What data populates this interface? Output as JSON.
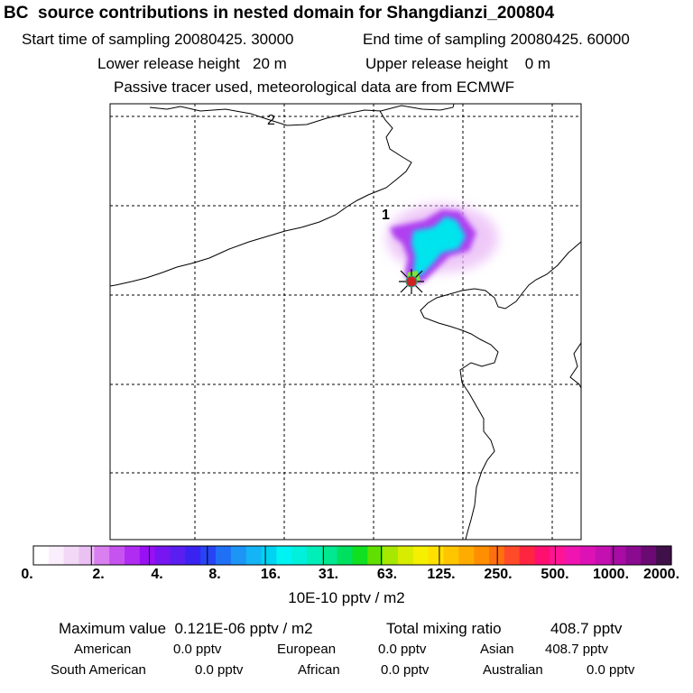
{
  "title": "BC  source contributions in nested domain for Shangdianzi_200804",
  "header": {
    "start_label": "Start time of sampling 20080425. 30000",
    "end_label": "End time of sampling 20080425. 60000",
    "lower_label": "Lower release height   20 m",
    "upper_label": "Upper release height    0 m",
    "tracer_note": "Passive tracer used, meteorological data are from ECMWF"
  },
  "map": {
    "grid_labels": [
      "2",
      "1"
    ],
    "receptor_color": "#cc2222",
    "coast_color": "#000000"
  },
  "colorbar": {
    "tick_labels": [
      "0.",
      "2.",
      "4.",
      "8.",
      "16.",
      "31.",
      "63.",
      "125.",
      "250.",
      "500.",
      "1000.",
      "2000."
    ],
    "colors": [
      "#ffffff",
      "#fbeefc",
      "#f3d8f7",
      "#ebc1f3",
      "#d97ff0",
      "#c653f0",
      "#b02cf2",
      "#9a10f4",
      "#7716f0",
      "#5a1ef0",
      "#3a22f0",
      "#2644f6",
      "#1f70f5",
      "#1c95f6",
      "#14b4f6",
      "#00d2f2",
      "#00f3f3",
      "#00f0dc",
      "#00eeb8",
      "#00e890",
      "#00e060",
      "#10e020",
      "#60e000",
      "#a6e800",
      "#d8ec00",
      "#f4f000",
      "#ffe000",
      "#ffc600",
      "#ffac00",
      "#ff8e00",
      "#ff7010",
      "#ff4b2a",
      "#ff2540",
      "#ff1070",
      "#ff1495",
      "#f014b0",
      "#dc12b4",
      "#c410b0",
      "#a80ca4",
      "#8a0a90",
      "#6a0a72",
      "#40104a"
    ],
    "units": "10E-10 pptv / m2"
  },
  "summary": {
    "max_label": "Maximum value  0.121E-06 pptv / m2",
    "total_label": "Total mixing ratio",
    "total_value": "408.7 pptv",
    "regions": [
      {
        "name": "American",
        "value": "0.0 pptv"
      },
      {
        "name": "European",
        "value": "0.0 pptv"
      },
      {
        "name": "Asian",
        "value": "408.7 pptv"
      },
      {
        "name": "South American",
        "value": "0.0 pptv"
      },
      {
        "name": "African",
        "value": "0.0 pptv"
      },
      {
        "name": "Australian",
        "value": "0.0 pptv"
      }
    ]
  }
}
